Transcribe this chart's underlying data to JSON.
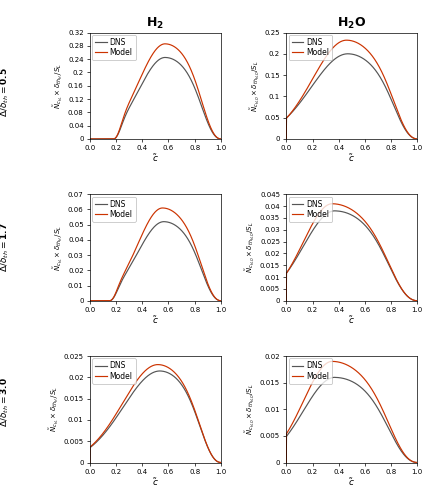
{
  "col_titles": [
    "H$_2$",
    "H$_2$O"
  ],
  "dns_color": "#555555",
  "model_color": "#cc3300",
  "ylims": [
    [
      [
        0,
        0.32
      ],
      [
        0,
        0.25
      ]
    ],
    [
      [
        0,
        0.07
      ],
      [
        0,
        0.045
      ]
    ],
    [
      [
        0,
        0.025
      ],
      [
        0,
        0.02
      ]
    ]
  ],
  "yticks": [
    [
      [
        0,
        0.04,
        0.08,
        0.12,
        0.16,
        0.2,
        0.24,
        0.28,
        0.32
      ],
      [
        0,
        0.05,
        0.1,
        0.15,
        0.2,
        0.25
      ]
    ],
    [
      [
        0,
        0.01,
        0.02,
        0.03,
        0.04,
        0.05,
        0.06,
        0.07
      ],
      [
        0,
        0.005,
        0.01,
        0.015,
        0.02,
        0.025,
        0.03,
        0.035,
        0.04,
        0.045
      ]
    ],
    [
      [
        0,
        0.005,
        0.01,
        0.015,
        0.02,
        0.025
      ],
      [
        0,
        0.005,
        0.01,
        0.015,
        0.02
      ]
    ]
  ],
  "row_label_texts": [
    "\\Delta/\\delta_{th} = \\bf{0.5}",
    "\\Delta/\\delta_{th} = \\bf{1.7}",
    "\\Delta/\\delta_{th} = \\bf{3.0}"
  ],
  "curves": [
    [
      {
        "dns": {
          "peak": 0.245,
          "peak_c": 0.575,
          "sig_l": 0.2,
          "sig_r": 0.3,
          "c0": 0.18,
          "c1": 1.0
        },
        "model": {
          "peak": 0.286,
          "peak_c": 0.575,
          "sig_l": 0.2,
          "sig_r": 0.3,
          "c0": 0.18,
          "c1": 1.0
        }
      },
      {
        "dns": {
          "peak": 0.2,
          "peak_c": 0.47,
          "sig_l": 0.28,
          "sig_r": 0.36,
          "c0": 0.0,
          "c1": 1.0
        },
        "model": {
          "peak": 0.232,
          "peak_c": 0.46,
          "sig_l": 0.26,
          "sig_r": 0.36,
          "c0": 0.0,
          "c1": 1.0
        }
      }
    ],
    [
      {
        "dns": {
          "peak": 0.052,
          "peak_c": 0.565,
          "sig_l": 0.2,
          "sig_r": 0.3,
          "c0": 0.15,
          "c1": 1.0
        },
        "model": {
          "peak": 0.061,
          "peak_c": 0.555,
          "sig_l": 0.19,
          "sig_r": 0.3,
          "c0": 0.15,
          "c1": 1.0
        }
      },
      {
        "dns": {
          "peak": 0.038,
          "peak_c": 0.37,
          "sig_l": 0.24,
          "sig_r": 0.45,
          "c0": 0.0,
          "c1": 1.0
        },
        "model": {
          "peak": 0.041,
          "peak_c": 0.35,
          "sig_l": 0.22,
          "sig_r": 0.44,
          "c0": 0.0,
          "c1": 1.0
        }
      }
    ],
    [
      {
        "dns": {
          "peak": 0.0215,
          "peak_c": 0.535,
          "sig_l": 0.28,
          "sig_r": 0.33,
          "c0": 0.0,
          "c1": 1.0
        },
        "model": {
          "peak": 0.023,
          "peak_c": 0.52,
          "sig_l": 0.27,
          "sig_r": 0.33,
          "c0": 0.0,
          "c1": 1.0
        }
      },
      {
        "dns": {
          "peak": 0.016,
          "peak_c": 0.37,
          "sig_l": 0.24,
          "sig_r": 0.46,
          "c0": 0.0,
          "c1": 1.0
        },
        "model": {
          "peak": 0.019,
          "peak_c": 0.35,
          "sig_l": 0.22,
          "sig_r": 0.44,
          "c0": 0.0,
          "c1": 1.0
        }
      }
    ]
  ]
}
